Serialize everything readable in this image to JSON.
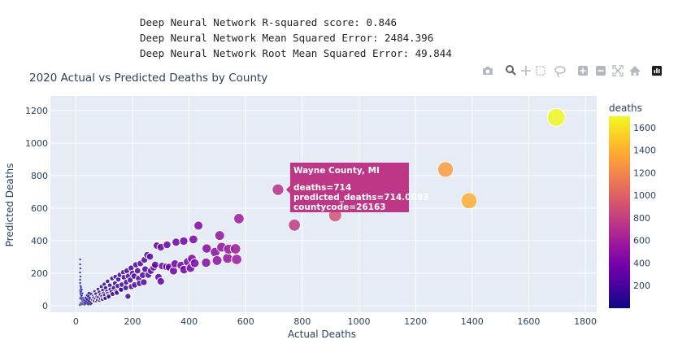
{
  "console_output": [
    "Deep Neural Network R-squared score: 0.846",
    "Deep Neural Network Mean Squared Error: 2484.396",
    "Deep Neural Network Root Mean Squared Error: 49.844"
  ],
  "toolbar": {
    "icons": [
      "camera-icon",
      "zoom-icon",
      "pan-icon",
      "box-select-icon",
      "lasso-select-icon",
      "zoom-in-icon",
      "zoom-out-icon",
      "autoscale-icon",
      "reset-axes-icon",
      "plotly-logo-icon"
    ]
  },
  "chart_data": {
    "type": "scatter",
    "title": "2020 Actual vs Predicted Deaths by County",
    "xlabel": "Actual Deaths",
    "ylabel": "Predicted Deaths",
    "xlim": [
      -90,
      1840
    ],
    "ylim": [
      -40,
      1290
    ],
    "xticks": [
      0,
      200,
      400,
      600,
      800,
      1000,
      1200,
      1400,
      1600,
      1800
    ],
    "yticks": [
      0,
      200,
      400,
      600,
      800,
      1000,
      1200
    ],
    "xtick_labels": [
      "0",
      "200",
      "400",
      "600",
      "800",
      "1000",
      "1200",
      "1400",
      "1600",
      "1800"
    ],
    "ytick_labels": [
      "0",
      "200",
      "400",
      "600",
      "800",
      "1000",
      "1200"
    ],
    "grid": true,
    "colorbar": {
      "title": "deaths",
      "min": 0,
      "max": 1700,
      "ticks": [
        200,
        400,
        600,
        800,
        1000,
        1200,
        1400,
        1600
      ],
      "tick_labels": [
        "200",
        "400",
        "600",
        "800",
        "1000",
        "1200",
        "1400",
        "1600"
      ],
      "colors": [
        "#0d0887",
        "#46039f",
        "#7201a8",
        "#9c179e",
        "#bd3786",
        "#d8576b",
        "#ed7953",
        "#fb9f3a",
        "#fdca26",
        "#f0f921"
      ]
    },
    "points": [
      {
        "x": 1697,
        "y": 1158
      },
      {
        "x": 1306,
        "y": 838
      },
      {
        "x": 1389,
        "y": 646
      },
      {
        "x": 714,
        "y": 714
      },
      {
        "x": 772,
        "y": 496
      },
      {
        "x": 916,
        "y": 556
      },
      {
        "x": 576,
        "y": 536
      },
      {
        "x": 433,
        "y": 493
      },
      {
        "x": 508,
        "y": 432
      },
      {
        "x": 564,
        "y": 350
      },
      {
        "x": 540,
        "y": 348
      },
      {
        "x": 515,
        "y": 360
      },
      {
        "x": 492,
        "y": 330
      },
      {
        "x": 462,
        "y": 352
      },
      {
        "x": 415,
        "y": 408
      },
      {
        "x": 381,
        "y": 398
      },
      {
        "x": 354,
        "y": 391
      },
      {
        "x": 322,
        "y": 375
      },
      {
        "x": 300,
        "y": 360
      },
      {
        "x": 286,
        "y": 370
      },
      {
        "x": 262,
        "y": 302
      },
      {
        "x": 252,
        "y": 312
      },
      {
        "x": 242,
        "y": 282
      },
      {
        "x": 228,
        "y": 260
      },
      {
        "x": 212,
        "y": 252
      },
      {
        "x": 195,
        "y": 232
      },
      {
        "x": 180,
        "y": 215
      },
      {
        "x": 168,
        "y": 206
      },
      {
        "x": 155,
        "y": 190
      },
      {
        "x": 140,
        "y": 178
      },
      {
        "x": 128,
        "y": 168
      },
      {
        "x": 112,
        "y": 150
      },
      {
        "x": 100,
        "y": 132
      },
      {
        "x": 90,
        "y": 118
      },
      {
        "x": 78,
        "y": 102
      },
      {
        "x": 66,
        "y": 88
      },
      {
        "x": 54,
        "y": 72
      },
      {
        "x": 44,
        "y": 58
      },
      {
        "x": 36,
        "y": 44
      },
      {
        "x": 568,
        "y": 285
      },
      {
        "x": 536,
        "y": 292
      },
      {
        "x": 499,
        "y": 278
      },
      {
        "x": 460,
        "y": 265
      },
      {
        "x": 420,
        "y": 262
      },
      {
        "x": 405,
        "y": 232
      },
      {
        "x": 382,
        "y": 222
      },
      {
        "x": 350,
        "y": 258
      },
      {
        "x": 330,
        "y": 237
      },
      {
        "x": 305,
        "y": 244
      },
      {
        "x": 280,
        "y": 252
      },
      {
        "x": 265,
        "y": 215
      },
      {
        "x": 245,
        "y": 225
      },
      {
        "x": 218,
        "y": 215
      },
      {
        "x": 200,
        "y": 200
      },
      {
        "x": 185,
        "y": 182
      },
      {
        "x": 170,
        "y": 175
      },
      {
        "x": 150,
        "y": 162
      },
      {
        "x": 138,
        "y": 138
      },
      {
        "x": 120,
        "y": 126
      },
      {
        "x": 105,
        "y": 110
      },
      {
        "x": 95,
        "y": 96
      },
      {
        "x": 82,
        "y": 84
      },
      {
        "x": 70,
        "y": 74
      },
      {
        "x": 60,
        "y": 60
      },
      {
        "x": 48,
        "y": 48
      },
      {
        "x": 40,
        "y": 38
      },
      {
        "x": 30,
        "y": 30
      },
      {
        "x": 24,
        "y": 22
      },
      {
        "x": 18,
        "y": 18
      },
      {
        "x": 410,
        "y": 290
      },
      {
        "x": 395,
        "y": 270
      },
      {
        "x": 372,
        "y": 248
      },
      {
        "x": 345,
        "y": 214
      },
      {
        "x": 320,
        "y": 240
      },
      {
        "x": 300,
        "y": 150
      },
      {
        "x": 292,
        "y": 176
      },
      {
        "x": 275,
        "y": 236
      },
      {
        "x": 256,
        "y": 190
      },
      {
        "x": 236,
        "y": 188
      },
      {
        "x": 222,
        "y": 168
      },
      {
        "x": 206,
        "y": 182
      },
      {
        "x": 192,
        "y": 158
      },
      {
        "x": 178,
        "y": 145
      },
      {
        "x": 162,
        "y": 130
      },
      {
        "x": 148,
        "y": 122
      },
      {
        "x": 134,
        "y": 110
      },
      {
        "x": 122,
        "y": 100
      },
      {
        "x": 110,
        "y": 88
      },
      {
        "x": 98,
        "y": 76
      },
      {
        "x": 86,
        "y": 68
      },
      {
        "x": 74,
        "y": 56
      },
      {
        "x": 62,
        "y": 50
      },
      {
        "x": 52,
        "y": 40
      },
      {
        "x": 184,
        "y": 58
      },
      {
        "x": 160,
        "y": 100
      },
      {
        "x": 145,
        "y": 80
      },
      {
        "x": 130,
        "y": 72
      },
      {
        "x": 115,
        "y": 64
      },
      {
        "x": 100,
        "y": 52
      },
      {
        "x": 88,
        "y": 44
      },
      {
        "x": 76,
        "y": 36
      },
      {
        "x": 64,
        "y": 30
      },
      {
        "x": 240,
        "y": 145
      },
      {
        "x": 225,
        "y": 138
      },
      {
        "x": 208,
        "y": 128
      },
      {
        "x": 196,
        "y": 118
      },
      {
        "x": 176,
        "y": 110
      },
      {
        "x": 158,
        "y": 96
      },
      {
        "x": 142,
        "y": 90
      },
      {
        "x": 126,
        "y": 84
      },
      {
        "x": 112,
        "y": 74
      },
      {
        "x": 102,
        "y": 66
      },
      {
        "x": 92,
        "y": 58
      },
      {
        "x": 80,
        "y": 52
      },
      {
        "x": 68,
        "y": 44
      },
      {
        "x": 58,
        "y": 36
      },
      {
        "x": 46,
        "y": 30
      },
      {
        "x": 38,
        "y": 26
      },
      {
        "x": 30,
        "y": 20
      },
      {
        "x": 22,
        "y": 14
      },
      {
        "x": 15,
        "y": 285
      },
      {
        "x": 15,
        "y": 255
      },
      {
        "x": 16,
        "y": 230
      },
      {
        "x": 15,
        "y": 205
      },
      {
        "x": 16,
        "y": 180
      },
      {
        "x": 15,
        "y": 160
      },
      {
        "x": 15,
        "y": 140
      },
      {
        "x": 16,
        "y": 122
      },
      {
        "x": 17,
        "y": 105
      },
      {
        "x": 15,
        "y": 92
      },
      {
        "x": 16,
        "y": 80
      },
      {
        "x": 17,
        "y": 70
      },
      {
        "x": 18,
        "y": 60
      },
      {
        "x": 19,
        "y": 52
      },
      {
        "x": 15,
        "y": 45
      },
      {
        "x": 20,
        "y": 40
      },
      {
        "x": 22,
        "y": 34
      },
      {
        "x": 24,
        "y": 28
      },
      {
        "x": 26,
        "y": 24
      },
      {
        "x": 28,
        "y": 20
      },
      {
        "x": 16,
        "y": 15
      },
      {
        "x": 18,
        "y": 10
      },
      {
        "x": 20,
        "y": 8
      },
      {
        "x": 14,
        "y": 5
      },
      {
        "x": 23,
        "y": 12
      },
      {
        "x": 27,
        "y": 16
      },
      {
        "x": 32,
        "y": 22
      },
      {
        "x": 35,
        "y": 14
      },
      {
        "x": 42,
        "y": 20
      },
      {
        "x": 50,
        "y": 24
      },
      {
        "x": 56,
        "y": 18
      },
      {
        "x": 62,
        "y": 26
      },
      {
        "x": 72,
        "y": 28
      },
      {
        "x": 84,
        "y": 34
      },
      {
        "x": 94,
        "y": 40
      },
      {
        "x": 104,
        "y": 46
      },
      {
        "x": 116,
        "y": 56
      },
      {
        "x": 52,
        "y": 12
      },
      {
        "x": 44,
        "y": 10
      },
      {
        "x": 30,
        "y": 8
      },
      {
        "x": 36,
        "y": 32
      },
      {
        "x": 28,
        "y": 36
      },
      {
        "x": 34,
        "y": 50
      },
      {
        "x": 40,
        "y": 64
      },
      {
        "x": 46,
        "y": 78
      },
      {
        "x": 25,
        "y": 48
      },
      {
        "x": 21,
        "y": 62
      },
      {
        "x": 23,
        "y": 76
      },
      {
        "x": 19,
        "y": 88
      },
      {
        "x": 21,
        "y": 100
      },
      {
        "x": 18,
        "y": 115
      }
    ],
    "tooltip": {
      "title": "Wayne County, MI",
      "lines": [
        "deaths=714",
        "predicted_deaths=714.0993",
        "countycode=26163"
      ],
      "anchor_point": {
        "x": 714,
        "y": 714
      },
      "color": "#bd3786"
    }
  }
}
